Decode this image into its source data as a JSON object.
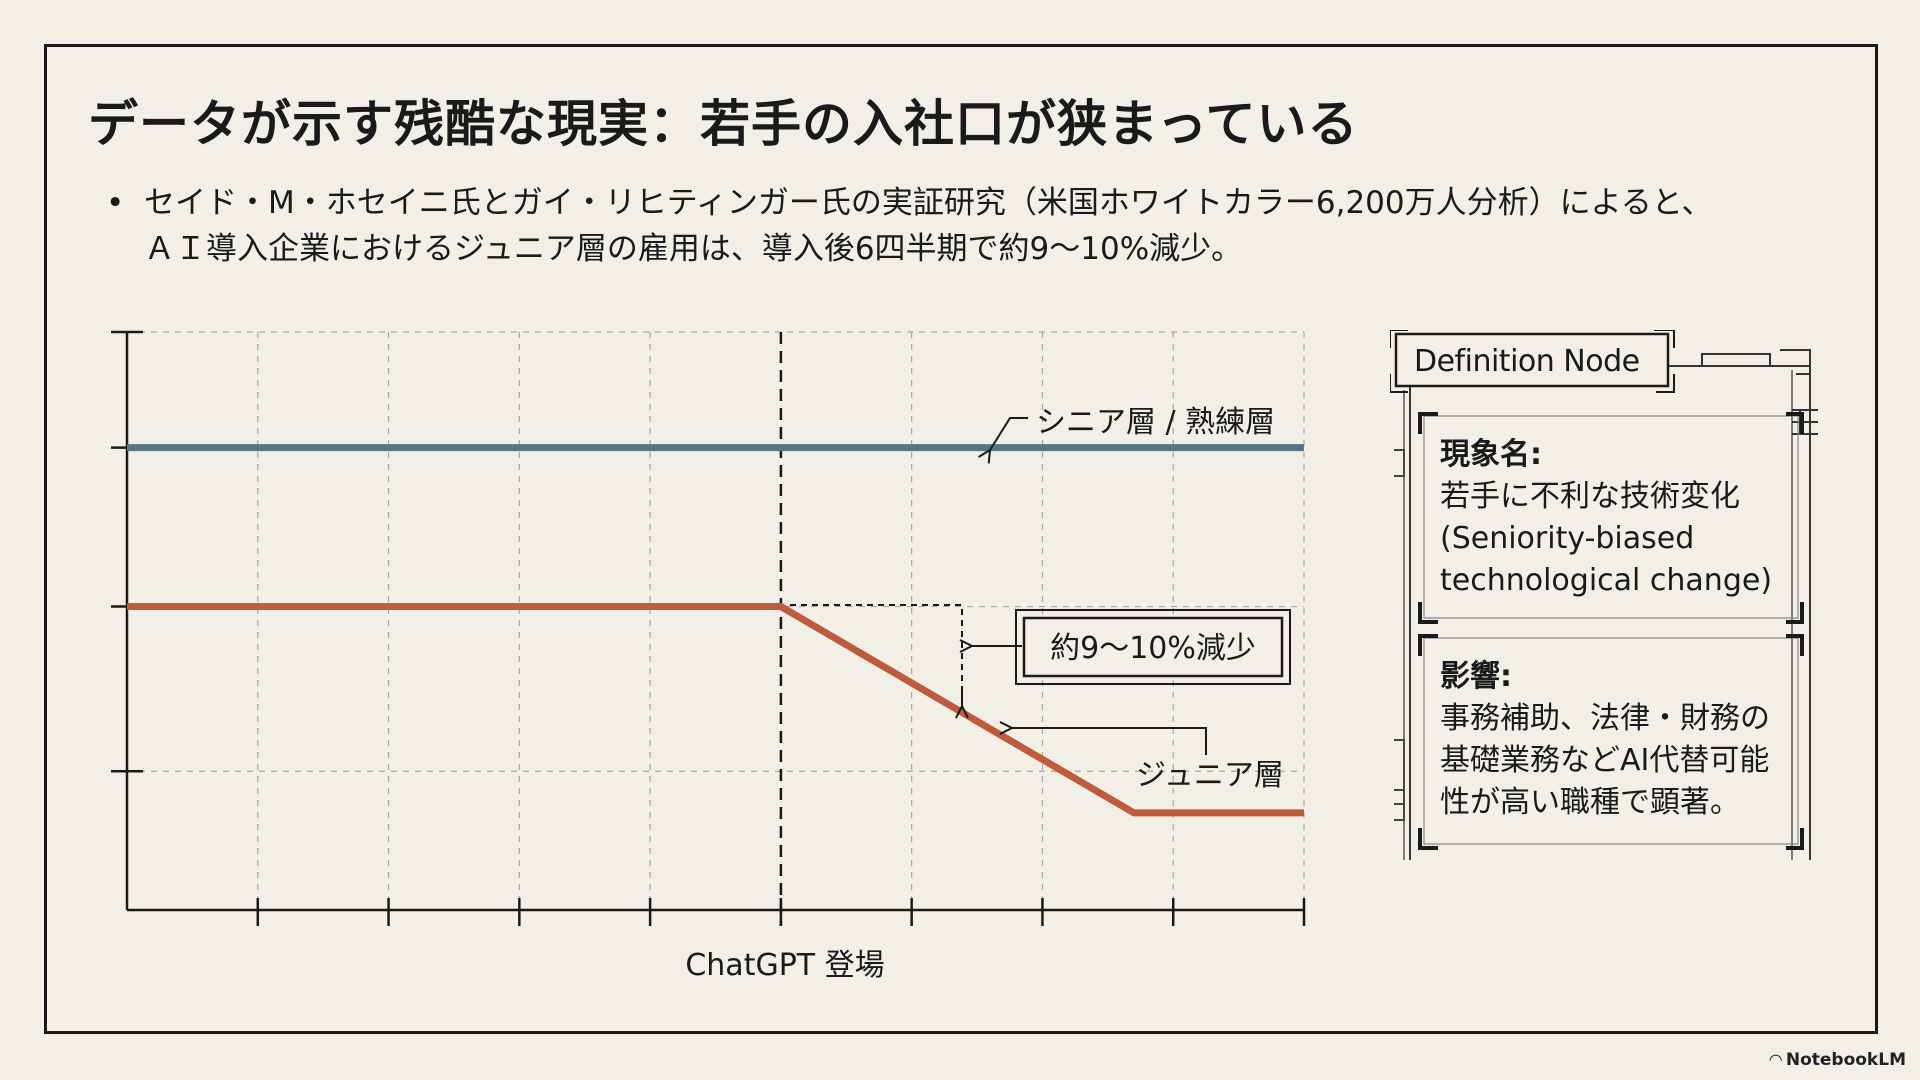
{
  "title": "データが示す残酷な現実：若手の入社口が狭まっている",
  "bullet": {
    "line1": "セイド・M・ホセイニ氏とガイ・リヒティンガー氏の実証研究（米国ホワイトカラー6,200万人分析）によると、",
    "line2": "ＡＩ導入企業におけるジュニア層の雇用は、導入後6四半期で約9〜10%減少。"
  },
  "chart_data": {
    "type": "line",
    "title": "",
    "xlabel": "",
    "ylabel": "",
    "x": [
      0,
      1,
      2,
      3,
      4,
      5,
      6,
      7,
      8,
      9
    ],
    "xlim": [
      0,
      9
    ],
    "ylim": [
      0,
      100
    ],
    "event_marker": {
      "x": 5,
      "label": "ChatGPT 登場"
    },
    "series": [
      {
        "name": "シニア層 / 熟練層",
        "color": "#5b7389",
        "points": [
          [
            0,
            80
          ],
          [
            9,
            80
          ]
        ]
      },
      {
        "name": "ジュニア層",
        "color": "#c05a3e",
        "points": [
          [
            0,
            52.5
          ],
          [
            5,
            52.5
          ],
          [
            7.7,
            16.8
          ],
          [
            9,
            16.8
          ]
        ]
      }
    ],
    "annotations": [
      {
        "text": "シニア層 / 熟練層",
        "target": "シニア層 / 熟練層"
      },
      {
        "text": "約9〜10%減少",
        "target": "drop"
      },
      {
        "text": "ジュニア層",
        "target": "ジュニア層"
      }
    ]
  },
  "definition": {
    "title": "Definition Node",
    "section1_head": "現象名:",
    "section1_body": "若手に不利な技術変化\n(Seniority-biased\ntechnological change)",
    "section2_head": "影響:",
    "section2_body": "事務補助、法律・財務の\n基礎業務などAI代替可能\n性が高い職種で顕著。"
  },
  "brand": "NotebookLM",
  "colors": {
    "background": "#f2efe6",
    "senior": "#5b7389",
    "junior": "#c05a3e",
    "ink": "#1a1a1a",
    "grid": "#9a9a9a"
  }
}
